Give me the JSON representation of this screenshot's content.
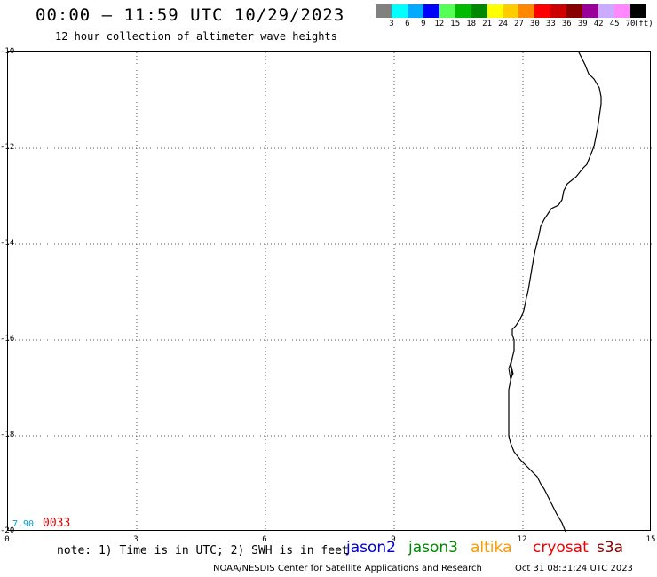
{
  "header": {
    "title": "00:00 — 11:59 UTC 10/29/2023",
    "subtitle": "12 hour collection of altimeter wave heights"
  },
  "colorbar": {
    "colors": [
      "#808080",
      "#00ffff",
      "#00aaff",
      "#0000ff",
      "#55ff55",
      "#00bb00",
      "#008800",
      "#ffff00",
      "#ffcc00",
      "#ff8800",
      "#ff0000",
      "#cc0000",
      "#880000",
      "#990099",
      "#ccaaff",
      "#ff88ff",
      "#000000"
    ],
    "labels": [
      "3",
      "6",
      "9",
      "12",
      "15",
      "18",
      "21",
      "24",
      "27",
      "30",
      "33",
      "36",
      "39",
      "42",
      "45",
      "70"
    ],
    "unit": "(ft)"
  },
  "map": {
    "y_ticks": [
      "-10",
      "-12",
      "-14",
      "-16",
      "-18",
      "-20"
    ],
    "x_ticks": [
      "0",
      "3",
      "6",
      "9",
      "12",
      "15"
    ],
    "lat_range": [
      -20,
      -10
    ],
    "lon_range": [
      0,
      15
    ],
    "grid": "dotted"
  },
  "readings": {
    "value_blue": "7.90",
    "value_red": "0033"
  },
  "footer": {
    "note": "note: 1) Time is in UTC; 2) SWH is in feet",
    "satellites": [
      {
        "name": "jason2",
        "color": "#0000cc"
      },
      {
        "name": "jason3",
        "color": "#008800"
      },
      {
        "name": "altika",
        "color": "#ff9900"
      },
      {
        "name": "cryosat",
        "color": "#ee0000"
      },
      {
        "name": "s3a",
        "color": "#880000"
      }
    ],
    "credit": "NOAA/NESDIS Center for Satellite Applications and Research",
    "timestamp": "Oct 31 08:31:24 UTC 2023"
  }
}
